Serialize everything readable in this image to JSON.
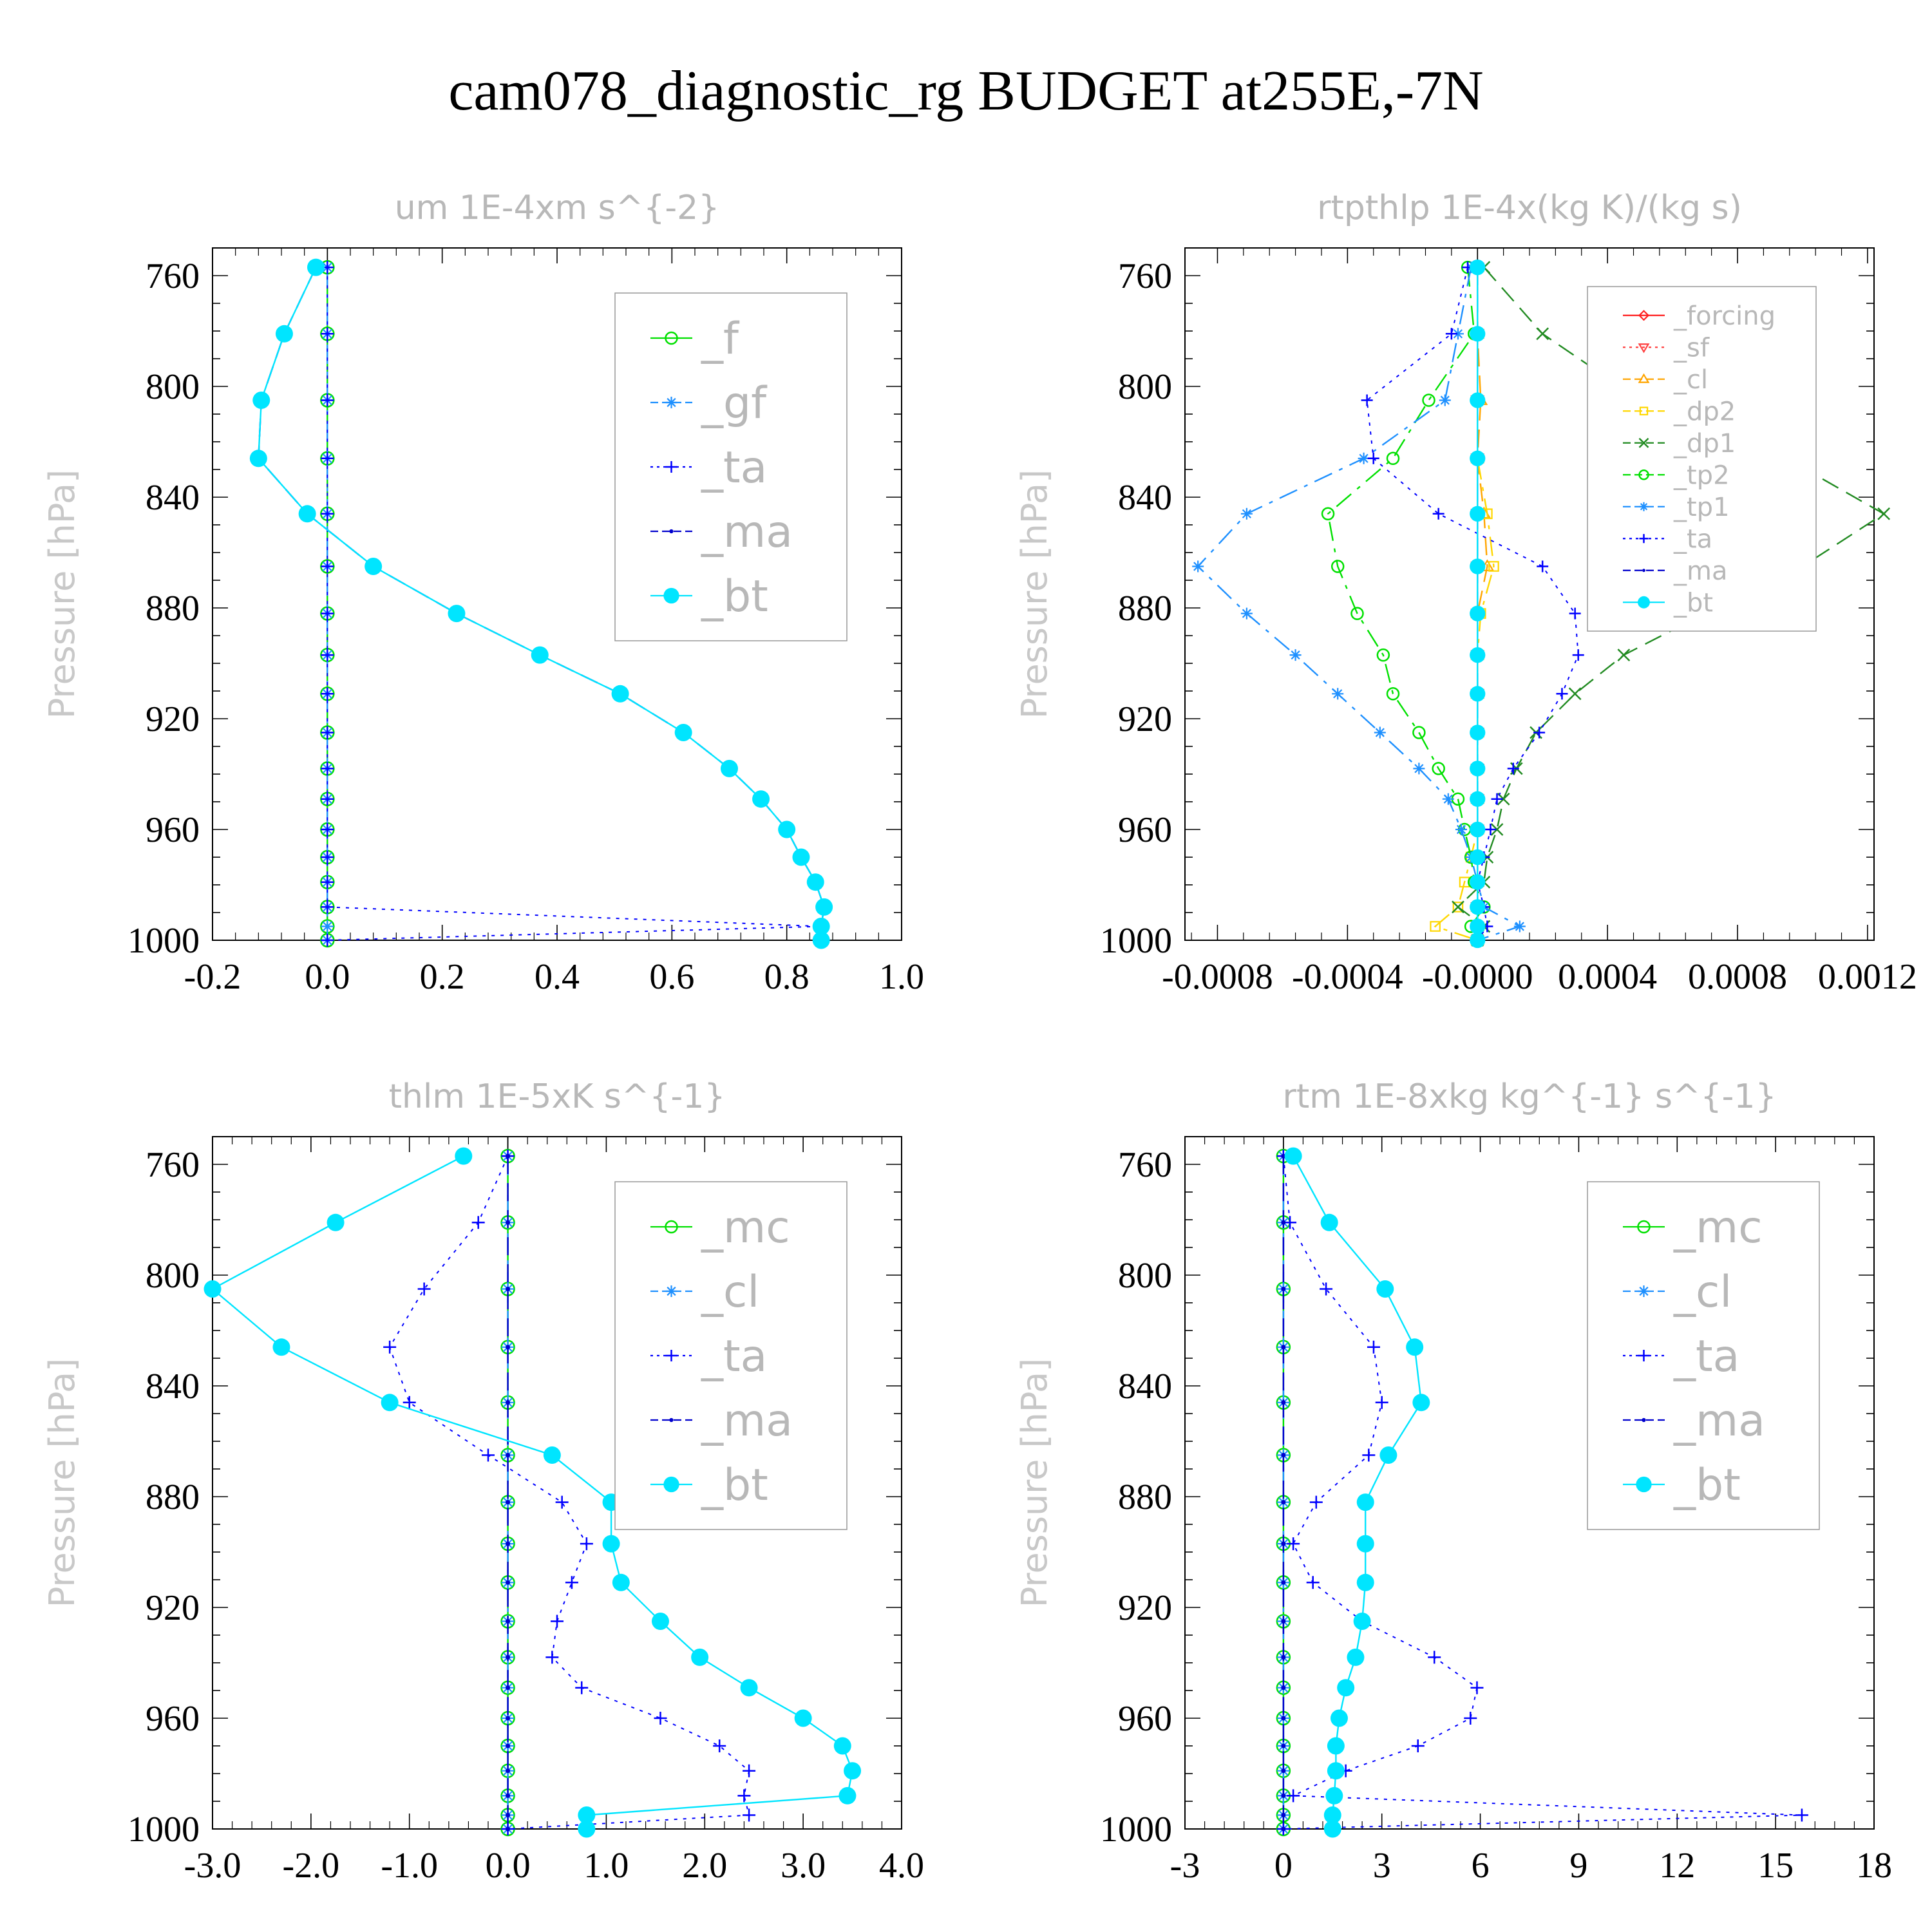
{
  "page": {
    "title": "cam078_diagnostic_rg  BUDGET at255E,-7N"
  },
  "chart_data": [
    {
      "type": "line",
      "title": "um   1E-4xm s^{-2}",
      "ylabel": "Pressure [hPa]",
      "xlim": [
        -0.2,
        1.0
      ],
      "ylim": [
        1000,
        750
      ],
      "xticks": [
        "-0.2",
        "0.0",
        "0.2",
        "0.4",
        "0.6",
        "0.8",
        "1.0"
      ],
      "yticks": [
        "760",
        "800",
        "840",
        "880",
        "920",
        "960",
        "1000"
      ],
      "legend_position": "top-right",
      "pressure": [
        757,
        781,
        805,
        826,
        846,
        865,
        882,
        897,
        911,
        925,
        938,
        949,
        960,
        970,
        979,
        988,
        995,
        1000
      ],
      "series": [
        {
          "name": "_f",
          "color": "#00e000",
          "style": "solid",
          "marker": "circle",
          "values": [
            0,
            0,
            0,
            0,
            0,
            0,
            0,
            0,
            0,
            0,
            0,
            0,
            0,
            0,
            0,
            0,
            0,
            0
          ]
        },
        {
          "name": "_gf",
          "color": "#1e90ff",
          "style": "dashdot",
          "marker": "asterisk",
          "values": [
            0,
            0,
            0,
            0,
            0,
            0,
            0,
            0,
            0,
            0,
            0,
            0,
            0,
            0,
            0,
            0,
            0,
            0
          ]
        },
        {
          "name": "_ta",
          "color": "#0000ff",
          "style": "dotted",
          "marker": "plus",
          "values": [
            0,
            0,
            0,
            0,
            0,
            0,
            0,
            0,
            0,
            0,
            0,
            0,
            0,
            0,
            0,
            0,
            0.86,
            0
          ]
        },
        {
          "name": "_ma",
          "color": "#0000cd",
          "style": "dashed",
          "marker": "dot",
          "values": [
            -0.02,
            -0.075,
            -0.115,
            -0.12,
            -0.035,
            0.08,
            0.225,
            0.37,
            0.51,
            0.62,
            0.7,
            0.755,
            0.8,
            0.825,
            0.85,
            0.865,
            0.86,
            0.86
          ]
        },
        {
          "name": "_bt",
          "color": "#00e5ff",
          "style": "solid",
          "marker": "filled-circle",
          "values": [
            -0.02,
            -0.075,
            -0.115,
            -0.12,
            -0.035,
            0.08,
            0.225,
            0.37,
            0.51,
            0.62,
            0.7,
            0.755,
            0.8,
            0.825,
            0.85,
            0.865,
            0.86,
            0.86
          ]
        }
      ]
    },
    {
      "type": "line",
      "title": "rtpthlp   1E-4x(kg K)/(kg s)",
      "ylabel": "Pressure [hPa]",
      "xlim": [
        -0.0009,
        0.00122
      ],
      "ylim": [
        1000,
        750
      ],
      "xticks": [
        {
          "v": -0.0008,
          "t": "-0.0008"
        },
        {
          "v": -0.0004,
          "t": "-0.0004"
        },
        {
          "v": 0,
          "t": "-0.0000"
        },
        {
          "v": 0.0004,
          "t": "0.0004"
        },
        {
          "v": 0.0008,
          "t": "0.0008"
        },
        {
          "v": 0.0012,
          "t": "0.0012"
        }
      ],
      "yticks": [
        "760",
        "800",
        "840",
        "880",
        "920",
        "960",
        "1000"
      ],
      "legend_position": "top-right",
      "pressure": [
        757,
        781,
        805,
        826,
        846,
        865,
        882,
        897,
        911,
        925,
        938,
        949,
        960,
        970,
        979,
        988,
        995,
        1000
      ],
      "series": [
        {
          "name": "_forcing",
          "color": "#ff2020",
          "style": "solid",
          "marker": "diamond",
          "values": [
            0,
            0,
            0,
            0,
            0,
            0,
            0,
            0,
            0,
            0,
            0,
            0,
            0,
            0,
            0,
            0,
            0,
            0
          ]
        },
        {
          "name": "_sf",
          "color": "#ff4040",
          "style": "dotted",
          "marker": "triangle-down",
          "values": [
            0,
            0,
            0,
            0,
            0,
            0,
            0,
            0,
            0,
            0,
            0,
            0,
            0,
            0,
            0,
            0,
            0,
            0
          ]
        },
        {
          "name": "_cl",
          "color": "#ffa500",
          "style": "dashed",
          "marker": "triangle-up",
          "values": [
            0,
            0,
            1e-05,
            0,
            2e-05,
            3e-05,
            0,
            0,
            0,
            0,
            0,
            0,
            0,
            0,
            0,
            0,
            0,
            0
          ]
        },
        {
          "name": "_dp2",
          "color": "#ffd700",
          "style": "dashdot",
          "marker": "square",
          "values": [
            0,
            0,
            0,
            0,
            3e-05,
            5e-05,
            1e-05,
            0,
            0,
            0,
            0,
            0,
            0,
            -2e-05,
            -4e-05,
            -6e-05,
            -0.00013,
            0
          ]
        },
        {
          "name": "_dp1",
          "color": "#228b22",
          "style": "dashed",
          "marker": "x",
          "values": [
            2e-05,
            0.0002,
            0.0005,
            0.00095,
            0.00125,
            0.001,
            0.0007,
            0.00045,
            0.0003,
            0.00018,
            0.00012,
            8e-05,
            6e-05,
            3e-05,
            2e-05,
            -6e-05,
            2e-05,
            0
          ]
        },
        {
          "name": "_tp2",
          "color": "#00e000",
          "style": "dashdot",
          "marker": "circle",
          "values": [
            -3e-05,
            -1e-05,
            -0.00015,
            -0.00026,
            -0.00046,
            -0.00043,
            -0.00037,
            -0.00029,
            -0.00026,
            -0.00018,
            -0.00012,
            -6e-05,
            -4e-05,
            -2e-05,
            -1e-05,
            2e-05,
            -2e-05,
            0
          ]
        },
        {
          "name": "_tp1",
          "color": "#1e90ff",
          "style": "dashdot",
          "marker": "asterisk",
          "values": [
            -2e-05,
            -6e-05,
            -0.0001,
            -0.00035,
            -0.00071,
            -0.00086,
            -0.00071,
            -0.00056,
            -0.00043,
            -0.0003,
            -0.00018,
            -9e-05,
            -5e-05,
            -2e-05,
            0,
            2e-05,
            0.00013,
            0
          ]
        },
        {
          "name": "_ta",
          "color": "#0000ff",
          "style": "dotted",
          "marker": "plus",
          "values": [
            -3e-05,
            -8e-05,
            -0.00034,
            -0.00032,
            -0.00012,
            0.0002,
            0.0003,
            0.00031,
            0.00026,
            0.00019,
            0.00011,
            6e-05,
            4e-05,
            2e-05,
            0,
            2e-05,
            3e-05,
            0
          ]
        },
        {
          "name": "_ma",
          "color": "#0000cd",
          "style": "dashed",
          "marker": "dot",
          "values": [
            0,
            0,
            0,
            0,
            0,
            0,
            0,
            0,
            0,
            0,
            0,
            0,
            0,
            0,
            0,
            0,
            0,
            0
          ]
        },
        {
          "name": "_bt",
          "color": "#00e5ff",
          "style": "solid",
          "marker": "filled-circle",
          "values": [
            0,
            0,
            0,
            0,
            0,
            0,
            0,
            0,
            0,
            0,
            0,
            0,
            0,
            0,
            0,
            0,
            0,
            0
          ]
        }
      ]
    },
    {
      "type": "line",
      "title": "thlm   1E-5xK s^{-1}",
      "ylabel": "Pressure [hPa]",
      "xlim": [
        -3.0,
        4.0
      ],
      "ylim": [
        1000,
        750
      ],
      "xticks": [
        "-3.0",
        "-2.0",
        "-1.0",
        "0.0",
        "1.0",
        "2.0",
        "3.0",
        "4.0"
      ],
      "yticks": [
        "760",
        "800",
        "840",
        "880",
        "920",
        "960",
        "1000"
      ],
      "legend_position": "top-right",
      "pressure": [
        757,
        781,
        805,
        826,
        846,
        865,
        882,
        897,
        911,
        925,
        938,
        949,
        960,
        970,
        979,
        988,
        995,
        1000
      ],
      "series": [
        {
          "name": "_mc",
          "color": "#00e000",
          "style": "solid",
          "marker": "circle",
          "values": [
            0,
            0,
            0,
            0,
            0,
            0,
            0,
            0,
            0,
            0,
            0,
            0,
            0,
            0,
            0,
            0,
            0,
            0
          ]
        },
        {
          "name": "_cl",
          "color": "#1e90ff",
          "style": "dashdot",
          "marker": "asterisk",
          "values": [
            0,
            0,
            0,
            0,
            0,
            0,
            0,
            0,
            0,
            0,
            0,
            0,
            0,
            0,
            0,
            0,
            0,
            0
          ]
        },
        {
          "name": "_ta",
          "color": "#0000ff",
          "style": "dotted",
          "marker": "plus",
          "values": [
            0,
            -0.3,
            -0.85,
            -1.2,
            -1.0,
            -0.2,
            0.55,
            0.8,
            0.65,
            0.5,
            0.45,
            0.75,
            1.55,
            2.15,
            2.45,
            2.4,
            2.45,
            0
          ]
        },
        {
          "name": "_ma",
          "color": "#0000cd",
          "style": "dashed",
          "marker": "dot",
          "values": [
            0,
            0,
            0,
            0,
            0,
            0,
            0,
            0,
            0,
            0,
            0,
            0,
            0,
            0,
            0,
            0,
            0,
            0
          ]
        },
        {
          "name": "_bt",
          "color": "#00e5ff",
          "style": "solid",
          "marker": "filled-circle",
          "values": [
            -0.45,
            -1.75,
            -3.0,
            -2.3,
            -1.2,
            0.45,
            1.05,
            1.05,
            1.15,
            1.55,
            1.95,
            2.45,
            3.0,
            3.4,
            3.5,
            3.45,
            0.8,
            0.8
          ]
        }
      ]
    },
    {
      "type": "line",
      "title": "rtm   1E-8xkg kg^{-1} s^{-1}",
      "ylabel": "Pressure [hPa]",
      "xlim": [
        -3,
        18
      ],
      "ylim": [
        1000,
        750
      ],
      "xticks": [
        "-3",
        "0",
        "3",
        "6",
        "9",
        "12",
        "15",
        "18"
      ],
      "yticks": [
        "760",
        "800",
        "840",
        "880",
        "920",
        "960",
        "1000"
      ],
      "legend_position": "top-right",
      "pressure": [
        757,
        781,
        805,
        826,
        846,
        865,
        882,
        897,
        911,
        925,
        938,
        949,
        960,
        970,
        979,
        988,
        995,
        1000
      ],
      "series": [
        {
          "name": "_mc",
          "color": "#00e000",
          "style": "solid",
          "marker": "circle",
          "values": [
            0,
            0,
            0,
            0,
            0,
            0,
            0,
            0,
            0,
            0,
            0,
            0,
            0,
            0,
            0,
            0,
            0,
            0
          ]
        },
        {
          "name": "_cl",
          "color": "#1e90ff",
          "style": "dashdot",
          "marker": "asterisk",
          "values": [
            0,
            0,
            0,
            0,
            0,
            0,
            0,
            0,
            0,
            0,
            0,
            0,
            0,
            0,
            0,
            0,
            0,
            0
          ]
        },
        {
          "name": "_ta",
          "color": "#0000ff",
          "style": "dotted",
          "marker": "plus",
          "values": [
            0,
            0.2,
            1.3,
            2.75,
            3.0,
            2.6,
            1.0,
            0.3,
            0.9,
            2.4,
            4.6,
            5.9,
            5.7,
            4.1,
            1.9,
            0.3,
            15.8,
            0
          ]
        },
        {
          "name": "_ma",
          "color": "#0000cd",
          "style": "dashed",
          "marker": "dot",
          "values": [
            0,
            0,
            0,
            0,
            0,
            0,
            0,
            0,
            0,
            0,
            0,
            0,
            0,
            0,
            0,
            0,
            0,
            0
          ]
        },
        {
          "name": "_bt",
          "color": "#00e5ff",
          "style": "solid",
          "marker": "filled-circle",
          "values": [
            0.3,
            1.4,
            3.1,
            4.0,
            4.2,
            3.2,
            2.5,
            2.5,
            2.5,
            2.4,
            2.2,
            1.9,
            1.7,
            1.6,
            1.6,
            1.55,
            1.5,
            1.5
          ]
        }
      ]
    }
  ]
}
